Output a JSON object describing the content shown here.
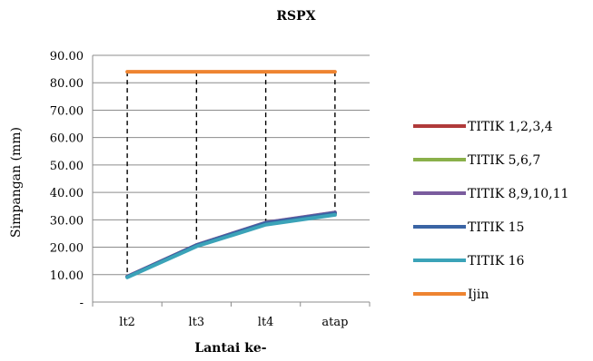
{
  "chart_data": {
    "type": "line",
    "title": "RSPX",
    "xlabel": "Lantai ke-",
    "ylabel": "Simpangan (mm)",
    "categories": [
      "lt2",
      "lt3",
      "lt4",
      "atap"
    ],
    "y_tick_labels": [
      "-",
      "10.00",
      "20.00",
      "30.00",
      "40.00",
      "50.00",
      "60.00",
      "70.00",
      "80.00",
      "90.00"
    ],
    "ylim": [
      0,
      90
    ],
    "grid": true,
    "legend_position": "right",
    "series": [
      {
        "name": "TITIK 1,2,3,4",
        "color": "#b03a3a",
        "values": [
          9.3,
          20.8,
          28.9,
          32.6
        ]
      },
      {
        "name": "TITIK 5,6,7",
        "color": "#8ab04a",
        "values": [
          9.2,
          20.6,
          28.6,
          32.2
        ]
      },
      {
        "name": "TITIK 8,9,10,11",
        "color": "#7a5c9e",
        "values": [
          9.3,
          20.8,
          29.0,
          32.7
        ]
      },
      {
        "name": "TITIK 15",
        "color": "#3a64a4",
        "values": [
          9.2,
          20.7,
          28.8,
          32.4
        ]
      },
      {
        "name": "TITIK 16",
        "color": "#3ba3b8",
        "values": [
          9.0,
          20.3,
          28.2,
          31.8
        ]
      },
      {
        "name": "Ijin",
        "color": "#ee8431",
        "values": [
          84.0,
          84.0,
          84.0,
          84.0
        ]
      }
    ]
  }
}
